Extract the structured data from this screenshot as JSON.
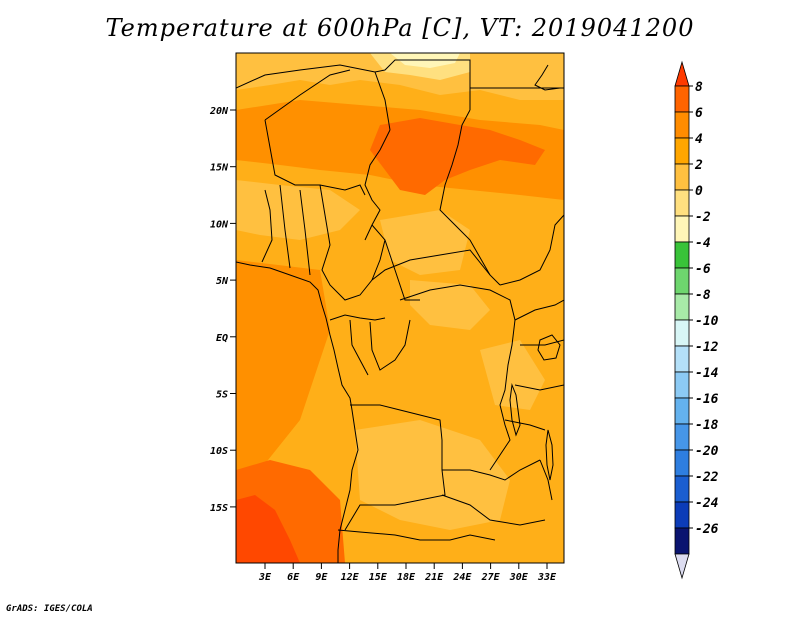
{
  "title": "Temperature at 600hPa [C], VT: 2019041200",
  "credit": "GrADS: IGES/COLA",
  "map": {
    "lon_labels": [
      "3E",
      "6E",
      "9E",
      "12E",
      "15E",
      "18E",
      "21E",
      "24E",
      "27E",
      "30E",
      "33E"
    ],
    "lat_labels": [
      "20N",
      "15N",
      "10N",
      "5N",
      "EQ",
      "5S",
      "10S",
      "15S"
    ]
  },
  "colorbar": {
    "labels": [
      "8",
      "6",
      "4",
      "2",
      "0",
      "-2",
      "-4",
      "-6",
      "-8",
      "-10",
      "-12",
      "-14",
      "-16",
      "-18",
      "-20",
      "-22",
      "-24",
      "-26"
    ],
    "colors": [
      "#ff3a00",
      "#ff6400",
      "#ff8c00",
      "#ffa600",
      "#ffc040",
      "#ffe080",
      "#fff6b8",
      "#39c339",
      "#6ed66e",
      "#a8eaa8",
      "#d8f6f6",
      "#b4e0f8",
      "#8ccaf4",
      "#64b2ee",
      "#4696e8",
      "#2e7ee0",
      "#1a5ed0",
      "#0c3cb8",
      "#0a1470",
      "#dcdcf0"
    ]
  },
  "fields": {
    "background": "#ffaf18",
    "warm": "#ff9000",
    "hot": "#ff6a00",
    "hottest": "#ff4800",
    "cool": "#ffc040",
    "cooler": "#ffe080",
    "coolest": "#fff6b8"
  }
}
